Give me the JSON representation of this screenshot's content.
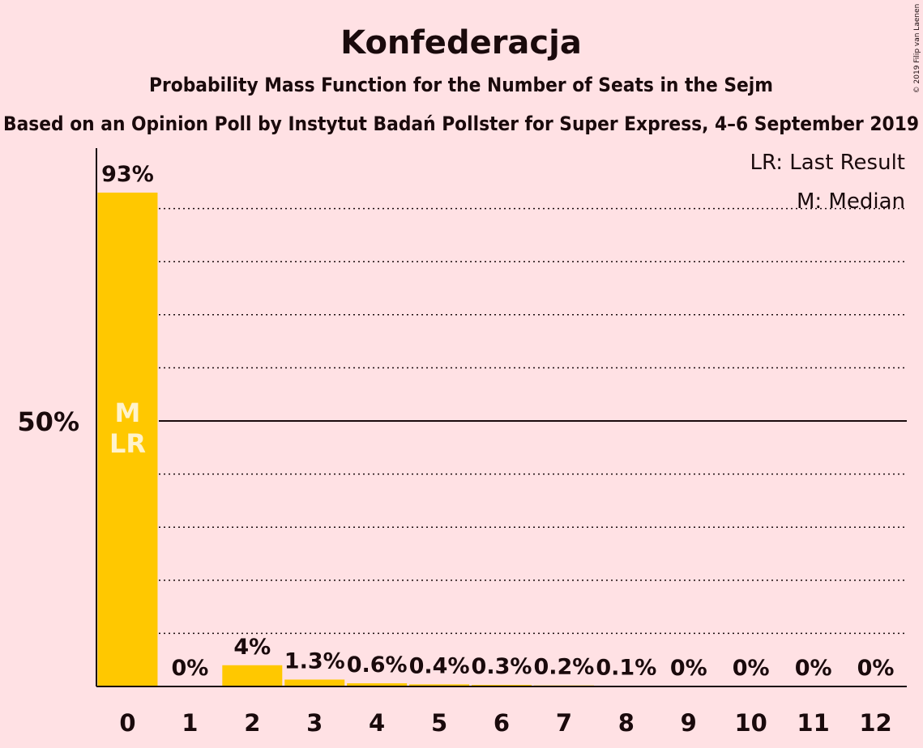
{
  "title": "Konfederacja",
  "subtitle": "Probability Mass Function for the Number of Seats in the Sejm",
  "subtitle2": "Based on an Opinion Poll by Instytut Badań Pollster for Super Express, 4–6 September 2019",
  "copyright": "© 2019 Filip van Laenen",
  "legend": {
    "last_result": "LR: Last Result",
    "median": "M: Median"
  },
  "colors": {
    "background": "#ffe1e4",
    "bar": "#ffc800",
    "text": "#1a0a0c"
  },
  "chart_data": {
    "type": "bar",
    "categories": [
      "0",
      "1",
      "2",
      "3",
      "4",
      "5",
      "6",
      "7",
      "8",
      "9",
      "10",
      "11",
      "12"
    ],
    "values": [
      93,
      0,
      4,
      1.3,
      0.6,
      0.4,
      0.3,
      0.2,
      0.1,
      0,
      0,
      0,
      0
    ],
    "value_labels": [
      "93%",
      "0%",
      "4%",
      "1.3%",
      "0.6%",
      "0.4%",
      "0.3%",
      "0.2%",
      "0.1%",
      "0%",
      "0%",
      "0%",
      "0%"
    ],
    "ylim": [
      0,
      100
    ],
    "y_ticks": [
      {
        "value": 50,
        "label": "50%"
      }
    ],
    "gridlines": [
      10,
      20,
      30,
      40,
      60,
      70,
      80,
      90
    ],
    "grid": true,
    "markers": [
      {
        "category": "0",
        "labels": [
          "M",
          "LR"
        ]
      }
    ],
    "legend_position": "top-right"
  }
}
